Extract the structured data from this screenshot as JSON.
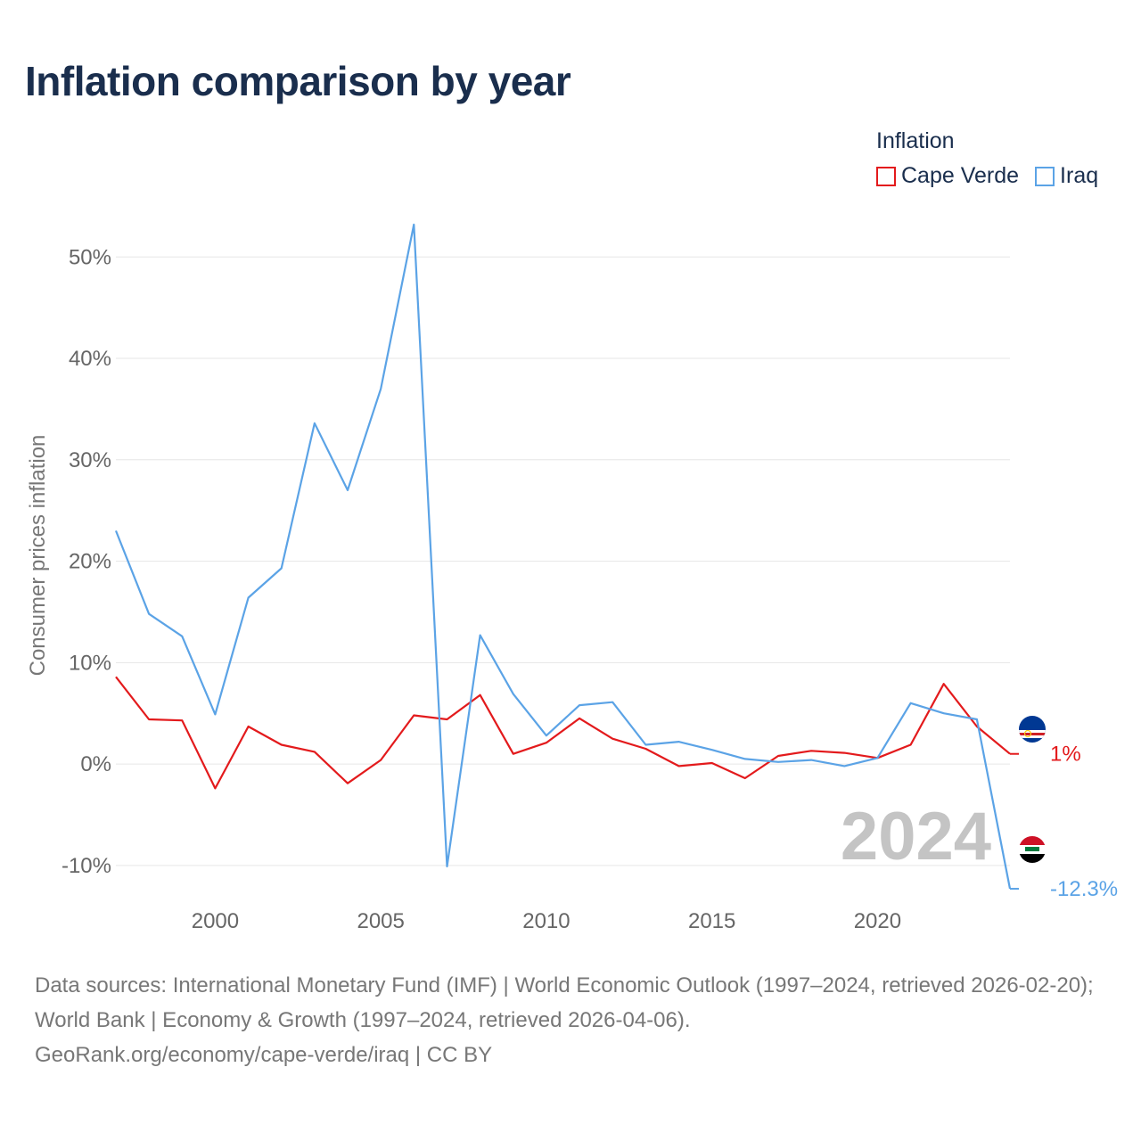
{
  "title": "Inflation comparison by year",
  "legend": {
    "title": "Inflation",
    "items": [
      {
        "label": "Cape Verde",
        "color": "#e31a1c"
      },
      {
        "label": "Iraq",
        "color": "#5ba3e6"
      }
    ]
  },
  "chart_data": {
    "type": "line",
    "title": "Inflation comparison by year",
    "xlabel": "",
    "ylabel": "Consumer prices inflation",
    "x": [
      1997,
      1998,
      1999,
      2000,
      2001,
      2002,
      2003,
      2004,
      2005,
      2006,
      2007,
      2008,
      2009,
      2010,
      2011,
      2012,
      2013,
      2014,
      2015,
      2016,
      2017,
      2018,
      2019,
      2020,
      2021,
      2022,
      2023,
      2024
    ],
    "xlim": [
      1997,
      2024
    ],
    "ylim": [
      -13,
      56
    ],
    "xticks": [
      2000,
      2005,
      2010,
      2015,
      2020
    ],
    "xtick_labels": [
      "2000",
      "2005",
      "2010",
      "2015",
      "2020"
    ],
    "yticks": [
      -10,
      0,
      10,
      20,
      30,
      40,
      50
    ],
    "ytick_labels": [
      "-10%",
      "0%",
      "10%",
      "20%",
      "30%",
      "40%",
      "50%"
    ],
    "grid": true,
    "year_watermark": "2024",
    "series": [
      {
        "name": "Cape Verde",
        "color": "#e31a1c",
        "end_label": "1%",
        "values": [
          8.6,
          4.4,
          4.3,
          -2.4,
          3.7,
          1.9,
          1.2,
          -1.9,
          0.4,
          4.8,
          4.4,
          6.8,
          1.0,
          2.1,
          4.5,
          2.5,
          1.5,
          -0.2,
          0.1,
          -1.4,
          0.8,
          1.3,
          1.1,
          0.6,
          1.9,
          7.9,
          3.7,
          1.0
        ]
      },
      {
        "name": "Iraq",
        "color": "#5ba3e6",
        "end_label": "-12.3%",
        "values": [
          23.0,
          14.8,
          12.6,
          4.9,
          16.4,
          19.3,
          33.6,
          27.0,
          37.0,
          53.2,
          -10.1,
          12.7,
          6.9,
          2.8,
          5.8,
          6.1,
          1.9,
          2.2,
          1.4,
          0.5,
          0.2,
          0.4,
          -0.2,
          0.6,
          6.0,
          5.0,
          4.4,
          -12.3
        ]
      }
    ]
  },
  "footer": {
    "sources": "Data sources: International Monetary Fund (IMF) | World Economic Outlook (1997–2024, retrieved 2026-02-20); World Bank | Economy & Growth (1997–2024, retrieved 2026-04-06).",
    "credit": "GeoRank.org/economy/cape-verde/iraq | CC BY"
  }
}
